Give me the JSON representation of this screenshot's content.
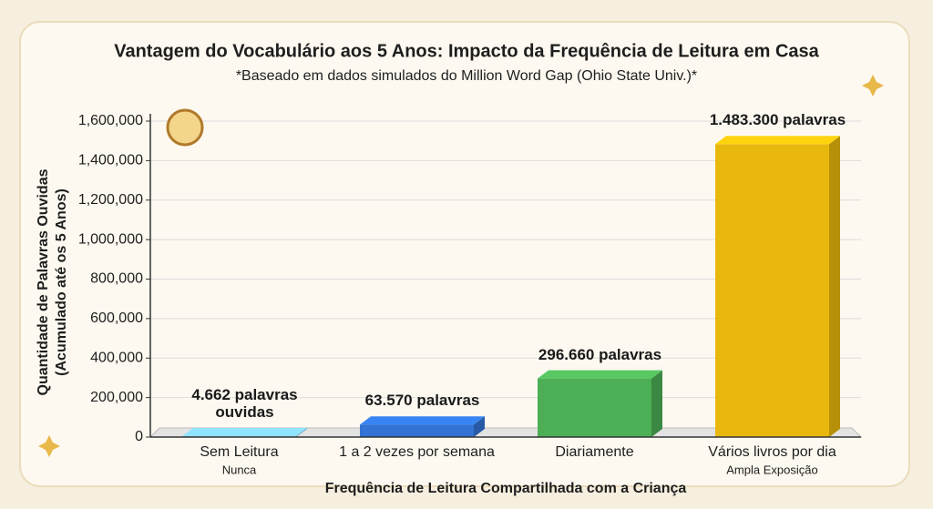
{
  "chart_data": {
    "type": "bar",
    "title": "Vantagem do Vocabulário aos 5 Anos: Impacto da Frequência de Leitura em Casa",
    "subtitle": "*Baseado em dados simulados do Million Word Gap (Ohio State Univ.)*",
    "y_label": [
      "Quantidade de Palavras Ouvidas",
      "(Acumulado até os 5 Anos)"
    ],
    "x_label": "Frequência de Leitura Compartilhada com a Criança",
    "categories": [
      "Sem Leitura",
      "1 a 2 vezes por semana",
      "Diariamente",
      "Vários livros por dia"
    ],
    "subcategories": [
      "Nunca",
      null,
      null,
      "Ampla Exposição"
    ],
    "values": [
      4662,
      63570,
      296660,
      1483300
    ],
    "value_labels": [
      "4.662 palavras\nouvidas",
      "63.570 palavras",
      "296.660 palavras",
      "1.483.300 palavras"
    ],
    "colors": [
      "#7ec6ea",
      "#3273d3",
      "#4cae55",
      "#e9b80c"
    ],
    "ylim": [
      0,
      1600000
    ],
    "yticks": [
      0,
      {
        "value": 200000,
        "label": "200,000"
      },
      {
        "value": 400000,
        "label": "400,000"
      },
      {
        "value": 600000,
        "label": "600,000"
      },
      {
        "value": 800000,
        "label": "800,000"
      },
      {
        "value": 1000000,
        "label": "1,000,000"
      },
      {
        "value": 1200000,
        "label": "1,200,000"
      },
      {
        "value": 1400000,
        "label": "1,400,000"
      },
      {
        "value": 1600000,
        "label": "1,600,000"
      }
    ],
    "grid": true
  }
}
